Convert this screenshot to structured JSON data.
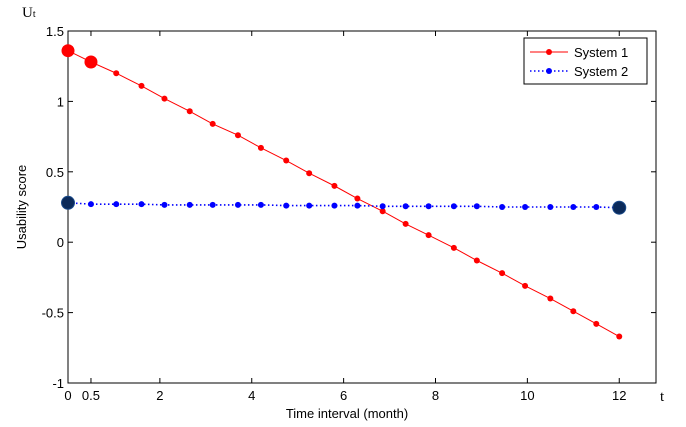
{
  "chart_data": {
    "type": "line",
    "title": "",
    "xlabel": "Time interval (month)",
    "ylabel": "Usability score",
    "y_corner_label": "U",
    "y_corner_sub": "t",
    "x_corner_label": "t",
    "xlim": [
      0,
      12.8
    ],
    "ylim": [
      -1,
      1.5
    ],
    "xticks": [
      0,
      0.5,
      2,
      4,
      6,
      8,
      10,
      12
    ],
    "xtick_labels": [
      "0",
      "0.5",
      "2",
      "4",
      "6",
      "8",
      "10",
      "12"
    ],
    "yticks": [
      -1,
      -0.5,
      0,
      0.5,
      1,
      1.5
    ],
    "ytick_labels": [
      "-1",
      "-0.5",
      "0",
      "0.5",
      "1",
      "1.5"
    ],
    "grid": false,
    "legend_position": "top-right",
    "series": [
      {
        "name": "System 1",
        "color": "#ff0000",
        "line_style": "solid",
        "x": [
          0,
          0.5,
          1.05,
          1.6,
          2.1,
          2.65,
          3.15,
          3.7,
          4.2,
          4.75,
          5.25,
          5.8,
          6.3,
          6.85,
          7.35,
          7.85,
          8.4,
          8.9,
          9.45,
          9.95,
          10.5,
          11.0,
          11.5,
          12.0
        ],
        "values": [
          1.36,
          1.28,
          1.2,
          1.11,
          1.02,
          0.93,
          0.84,
          0.76,
          0.67,
          0.58,
          0.49,
          0.4,
          0.31,
          0.22,
          0.13,
          0.05,
          -0.04,
          -0.13,
          -0.22,
          -0.31,
          -0.4,
          -0.49,
          -0.58,
          -0.67
        ],
        "highlighted_indices": [
          0,
          1
        ]
      },
      {
        "name": "System 2",
        "color": "#0000ff",
        "line_style": "dotted",
        "x": [
          0,
          0.5,
          1.05,
          1.6,
          2.1,
          2.65,
          3.15,
          3.7,
          4.2,
          4.75,
          5.25,
          5.8,
          6.3,
          6.85,
          7.35,
          7.85,
          8.4,
          8.9,
          9.45,
          9.95,
          10.5,
          11.0,
          11.5,
          12.0
        ],
        "values": [
          0.28,
          0.27,
          0.27,
          0.27,
          0.265,
          0.265,
          0.265,
          0.265,
          0.265,
          0.26,
          0.26,
          0.26,
          0.26,
          0.255,
          0.255,
          0.255,
          0.255,
          0.255,
          0.25,
          0.25,
          0.25,
          0.25,
          0.25,
          0.245
        ],
        "highlighted_indices": [
          0,
          23
        ],
        "highlight_color": "#0b2a5a"
      }
    ]
  }
}
